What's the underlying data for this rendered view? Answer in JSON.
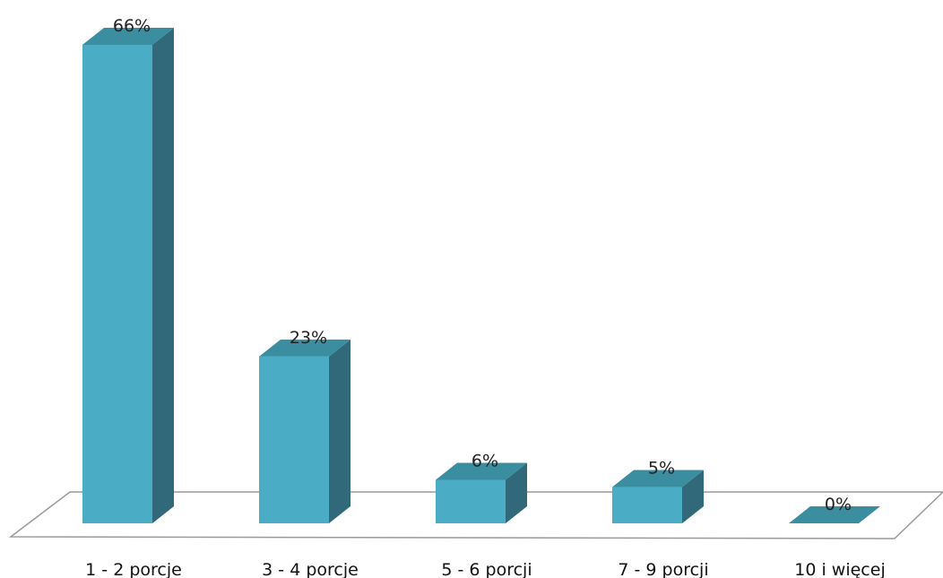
{
  "chart_data": {
    "type": "bar",
    "style": "3d-column",
    "categories": [
      "1 - 2 porcje",
      "3 - 4 porcje",
      "5 - 6 porcji",
      "7 - 9 porcji",
      "10 i więcej"
    ],
    "values": [
      66,
      23,
      6,
      5,
      0
    ],
    "data_labels": [
      "66%",
      "23%",
      "6%",
      "5%",
      "0%"
    ],
    "ylim": [
      0,
      66
    ],
    "grid": false,
    "legend": "none",
    "colors": {
      "front": "#4BACC6",
      "side": "#31697A",
      "top": "#3B8DA0",
      "floor_stroke": "#9A9A9A"
    }
  }
}
